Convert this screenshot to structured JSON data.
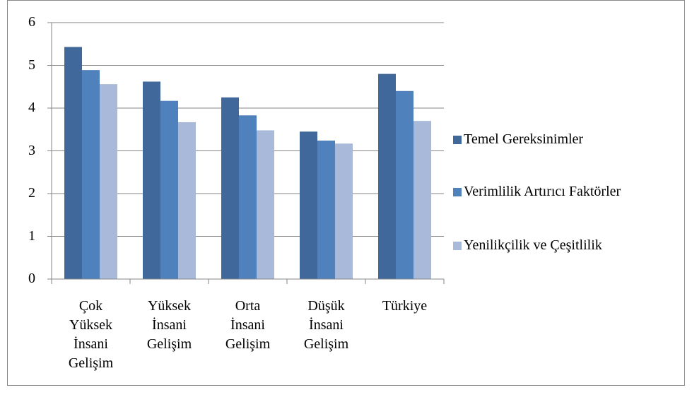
{
  "chart_data": {
    "type": "bar",
    "categories": [
      "Çok Yüksek İnsani Gelişim",
      "Yüksek İnsani Gelişim",
      "Orta İnsani Gelişim",
      "Düşük İnsani Gelişim",
      "Türkiye"
    ],
    "series": [
      {
        "name": "Temel Gereksinimler",
        "color": "#40689a",
        "values": [
          5.43,
          4.62,
          4.25,
          3.45,
          4.8
        ]
      },
      {
        "name": "Verimlilik Artırıcı Faktörler",
        "color": "#4f81bd",
        "values": [
          4.89,
          4.17,
          3.83,
          3.24,
          4.4
        ]
      },
      {
        "name": "Yenilikçilik ve Çeşitlilik",
        "color": "#a8b9da",
        "values": [
          4.56,
          3.67,
          3.48,
          3.17,
          3.7
        ]
      }
    ],
    "ylim": [
      0,
      6
    ],
    "yticks": [
      0,
      1,
      2,
      3,
      4,
      5,
      6
    ],
    "grid": true,
    "legend": "right"
  }
}
